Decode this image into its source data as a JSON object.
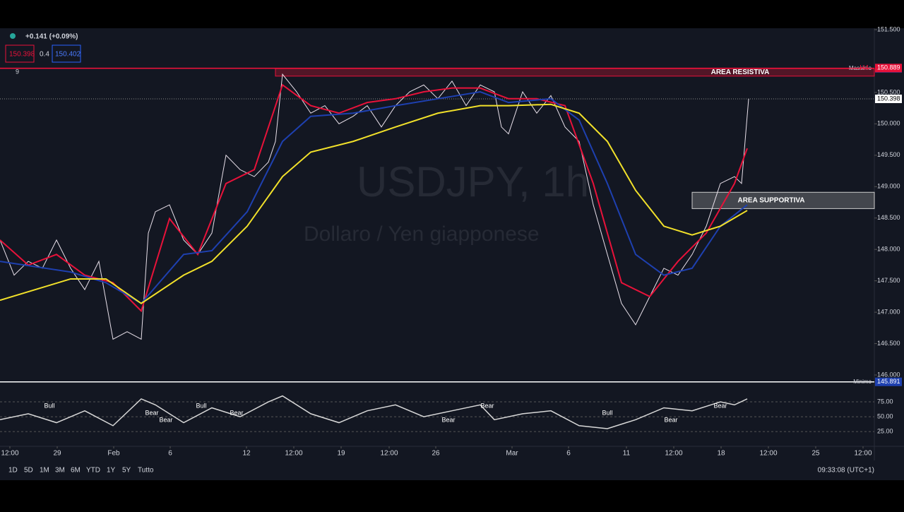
{
  "header": {
    "change": "+0.141 (+0.09%)",
    "bid": "150.398",
    "spread": "0.4",
    "ask": "150.402",
    "indicator_count": "9"
  },
  "watermark": {
    "symbol": "USDJPY, 1h",
    "description": "Dollaro / Yen giapponese"
  },
  "chart_data": {
    "type": "line",
    "xlim": [
      0,
      123.8
    ],
    "xticks": [
      {
        "value": 1.4,
        "label": "12:00"
      },
      {
        "value": 8.1,
        "label": "29"
      },
      {
        "value": 16.1,
        "label": "Feb"
      },
      {
        "value": 24.1,
        "label": "6"
      },
      {
        "value": 34.9,
        "label": "12"
      },
      {
        "value": 41.6,
        "label": "12:00"
      },
      {
        "value": 48.3,
        "label": "19"
      },
      {
        "value": 55.1,
        "label": "12:00"
      },
      {
        "value": 61.7,
        "label": "26"
      },
      {
        "value": 72.5,
        "label": "Mar"
      },
      {
        "value": 80.5,
        "label": "6"
      },
      {
        "value": 88.7,
        "label": "11"
      },
      {
        "value": 95.4,
        "label": "12:00"
      },
      {
        "value": 102.1,
        "label": "18"
      },
      {
        "value": 108.8,
        "label": "12:00"
      },
      {
        "value": 115.5,
        "label": "25"
      },
      {
        "value": 122.2,
        "label": "12:00"
      }
    ],
    "ylim": [
      145.8,
      151.54
    ],
    "yticks": [
      {
        "value": 151.5,
        "label": "151.500"
      },
      {
        "value": 150.5,
        "label": "150.500"
      },
      {
        "value": 150,
        "label": "150.000"
      },
      {
        "value": 149.5,
        "label": "149.500"
      },
      {
        "value": 149,
        "label": "149.000"
      },
      {
        "value": 148.5,
        "label": "148.500"
      },
      {
        "value": 148,
        "label": "148.000"
      },
      {
        "value": 147.5,
        "label": "147.500"
      },
      {
        "value": 147,
        "label": "147.000"
      },
      {
        "value": 146.5,
        "label": "146.500"
      },
      {
        "value": 146,
        "label": "146.000"
      }
    ],
    "series": [
      {
        "name": "Prezzo",
        "color": "#e8e0ea",
        "x": [
          0,
          2,
          4,
          6,
          8,
          10,
          12,
          14,
          16,
          18,
          20,
          21,
          22,
          24,
          26,
          28,
          30,
          32,
          34,
          36,
          38,
          39,
          40,
          42,
          44,
          46,
          48,
          50,
          52,
          54,
          56,
          58,
          60,
          62,
          64,
          66,
          68,
          70,
          71,
          72,
          74,
          76,
          78,
          80,
          82,
          84,
          86,
          88,
          90,
          92,
          94,
          96,
          98,
          100,
          102,
          104,
          105,
          106
        ],
        "values": [
          148.15,
          147.59,
          147.81,
          147.7,
          148.15,
          147.7,
          147.36,
          147.81,
          146.57,
          146.69,
          146.57,
          148.26,
          148.6,
          148.71,
          148.15,
          147.92,
          148.26,
          149.5,
          149.27,
          149.16,
          149.39,
          149.72,
          150.79,
          150.51,
          150.17,
          150.29,
          150,
          150.12,
          150.29,
          149.95,
          150.29,
          150.51,
          150.62,
          150.4,
          150.68,
          150.29,
          150.62,
          150.51,
          149.95,
          149.84,
          150.51,
          150.17,
          150.45,
          149.95,
          149.72,
          148.71,
          147.92,
          147.14,
          146.8,
          147.25,
          147.7,
          147.59,
          147.92,
          148.37,
          149.05,
          149.16,
          149.05,
          150.4
        ]
      },
      {
        "name": "EMA veloce",
        "color": "#e8123a",
        "x": [
          0,
          4,
          8,
          12,
          16,
          20,
          24,
          28,
          32,
          36,
          40,
          44,
          48,
          52,
          56,
          60,
          64,
          68,
          72,
          76,
          80,
          84,
          88,
          92,
          96,
          100,
          104,
          105.8
        ],
        "values": [
          148.15,
          147.75,
          147.92,
          147.59,
          147.47,
          147.02,
          148.49,
          147.92,
          149.05,
          149.27,
          150.62,
          150.29,
          150.17,
          150.34,
          150.4,
          150.51,
          150.57,
          150.57,
          150.4,
          150.4,
          150.29,
          149.05,
          147.47,
          147.25,
          147.81,
          148.26,
          149.05,
          149.61
        ]
      },
      {
        "name": "EMA media",
        "color": "#1e40b0",
        "x": [
          0,
          10,
          15,
          20,
          26,
          30,
          35,
          40,
          44,
          50,
          56,
          62,
          68,
          72,
          78,
          82,
          86,
          90,
          94,
          98,
          102,
          105.8
        ],
        "values": [
          147.81,
          147.64,
          147.47,
          147.14,
          147.92,
          147.98,
          148.6,
          149.72,
          150.12,
          150.17,
          150.29,
          150.4,
          150.51,
          150.34,
          150.4,
          150.06,
          149.05,
          147.92,
          147.59,
          147.7,
          148.37,
          148.71
        ]
      },
      {
        "name": "EMA lenta",
        "color": "#f2e12a",
        "x": [
          0,
          10,
          15,
          20,
          26,
          30,
          35,
          40,
          44,
          50,
          56,
          62,
          68,
          72,
          78,
          82,
          86,
          90,
          94,
          98,
          102,
          105.8
        ],
        "values": [
          147.19,
          147.53,
          147.53,
          147.14,
          147.59,
          147.81,
          148.37,
          149.16,
          149.55,
          149.72,
          149.95,
          150.17,
          150.29,
          150.29,
          150.31,
          150.17,
          149.72,
          148.94,
          148.37,
          148.23,
          148.37,
          148.62
        ]
      }
    ],
    "zones": [
      {
        "label": "AREA RESISTIVA",
        "low": 150.76,
        "high": 150.88
      },
      {
        "label": "AREA SUPPORTIVA",
        "low": 148.65,
        "high": 148.91
      }
    ],
    "levels": [
      {
        "label": "Massimo",
        "value": 150.884,
        "price_label": "150.884",
        "color": "#e8123a"
      },
      {
        "label": "Minimo",
        "value": 145.891,
        "price_label": "145.891",
        "color": "#ffffff"
      }
    ],
    "last_price": {
      "value": 150.398,
      "label": "150.398"
    },
    "h4_high": {
      "value": 150.889,
      "label": "150.889",
      "tag": "H4"
    }
  },
  "oscillator": {
    "ylim": [
      5,
      100
    ],
    "yticks": [
      {
        "value": 75,
        "label": "75.00"
      },
      {
        "value": 50,
        "label": "50.00"
      },
      {
        "value": 25,
        "label": "25.00"
      }
    ],
    "x": [
      0,
      4,
      8,
      12,
      16,
      20,
      22,
      26,
      30,
      34,
      38,
      40,
      44,
      48,
      52,
      56,
      60,
      64,
      68,
      70,
      74,
      78,
      82,
      86,
      90,
      94,
      98,
      102,
      104,
      105.8
    ],
    "values": [
      45,
      55,
      40,
      60,
      35,
      80,
      70,
      40,
      65,
      50,
      75,
      85,
      55,
      40,
      60,
      70,
      50,
      60,
      70,
      45,
      55,
      60,
      35,
      30,
      45,
      65,
      60,
      75,
      70,
      80
    ],
    "color": "#d8d8d8",
    "labels": [
      {
        "x": 7,
        "text": "Bull"
      },
      {
        "x": 21.5,
        "text": "Bear"
      },
      {
        "x": 23.5,
        "text": "Bear"
      },
      {
        "x": 28.5,
        "text": "Bull"
      },
      {
        "x": 33.5,
        "text": "Bear"
      },
      {
        "x": 63.5,
        "text": "Bear"
      },
      {
        "x": 69,
        "text": "Bear"
      },
      {
        "x": 86,
        "text": "Bull"
      },
      {
        "x": 95,
        "text": "Bear"
      },
      {
        "x": 102,
        "text": "Bear"
      }
    ]
  },
  "toolbar": {
    "ranges": [
      "1D",
      "5D",
      "1M",
      "3M",
      "6M",
      "YTD",
      "1Y",
      "5Y",
      "Tutto"
    ],
    "clock": "09:33:08 (UTC+1)"
  }
}
